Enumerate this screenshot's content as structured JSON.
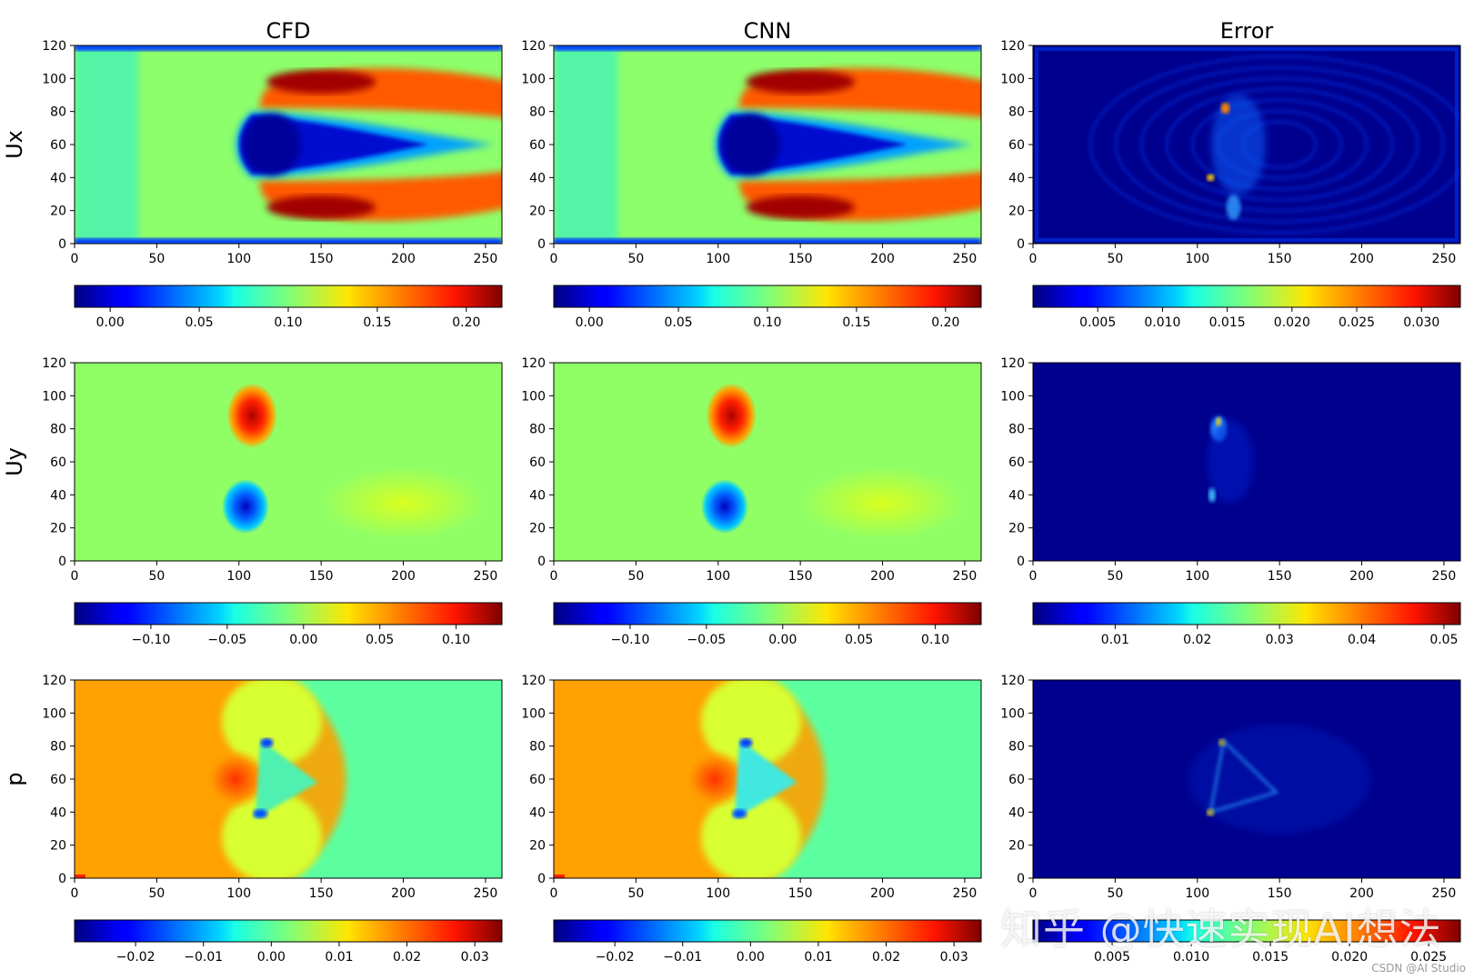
{
  "figure": {
    "column_titles": [
      "CFD",
      "CNN",
      "Error"
    ],
    "row_labels": [
      "Ux",
      "Uy",
      "p"
    ],
    "watermark": "知乎 @快速实现AI想法",
    "credit": "CSDN @AI Studio"
  },
  "chart_data": [
    {
      "type": "heatmap",
      "title": "CFD",
      "ylabel": "Ux",
      "field": "Ux",
      "colormap": "jet",
      "xlim": [
        0,
        260
      ],
      "ylim": [
        0,
        120
      ],
      "x_ticks": [
        0,
        50,
        100,
        150,
        200,
        250
      ],
      "y_ticks": [
        0,
        20,
        40,
        60,
        80,
        100,
        120
      ],
      "colorbar": {
        "orientation": "horizontal",
        "range": [
          -0.02,
          0.22
        ],
        "ticks": [
          0.0,
          0.05,
          0.1,
          0.15,
          0.2
        ],
        "tick_labels": [
          "0.00",
          "0.05",
          "0.10",
          "0.15",
          "0.20"
        ]
      }
    },
    {
      "type": "heatmap",
      "title": "CNN",
      "ylabel": "",
      "field": "Ux",
      "colormap": "jet",
      "xlim": [
        0,
        260
      ],
      "ylim": [
        0,
        120
      ],
      "x_ticks": [
        0,
        50,
        100,
        150,
        200,
        250
      ],
      "y_ticks": [
        0,
        20,
        40,
        60,
        80,
        100,
        120
      ],
      "colorbar": {
        "orientation": "horizontal",
        "range": [
          -0.02,
          0.22
        ],
        "ticks": [
          0.0,
          0.05,
          0.1,
          0.15,
          0.2
        ],
        "tick_labels": [
          "0.00",
          "0.05",
          "0.10",
          "0.15",
          "0.20"
        ]
      }
    },
    {
      "type": "heatmap",
      "title": "Error",
      "ylabel": "",
      "field": "Ux-error",
      "colormap": "jet",
      "xlim": [
        0,
        260
      ],
      "ylim": [
        0,
        120
      ],
      "x_ticks": [
        0,
        50,
        100,
        150,
        200,
        250
      ],
      "y_ticks": [
        0,
        20,
        40,
        60,
        80,
        100,
        120
      ],
      "colorbar": {
        "orientation": "horizontal",
        "range": [
          0.0,
          0.033
        ],
        "ticks": [
          0.005,
          0.01,
          0.015,
          0.02,
          0.025,
          0.03
        ],
        "tick_labels": [
          "0.005",
          "0.010",
          "0.015",
          "0.020",
          "0.025",
          "0.030"
        ]
      }
    },
    {
      "type": "heatmap",
      "title": "",
      "ylabel": "Uy",
      "field": "Uy",
      "colormap": "jet",
      "xlim": [
        0,
        260
      ],
      "ylim": [
        0,
        120
      ],
      "x_ticks": [
        0,
        50,
        100,
        150,
        200,
        250
      ],
      "y_ticks": [
        0,
        20,
        40,
        60,
        80,
        100,
        120
      ],
      "colorbar": {
        "orientation": "horizontal",
        "range": [
          -0.15,
          0.13
        ],
        "ticks": [
          -0.1,
          -0.05,
          0.0,
          0.05,
          0.1
        ],
        "tick_labels": [
          "−0.10",
          "−0.05",
          "0.00",
          "0.05",
          "0.10"
        ]
      }
    },
    {
      "type": "heatmap",
      "title": "",
      "ylabel": "",
      "field": "Uy",
      "colormap": "jet",
      "xlim": [
        0,
        260
      ],
      "ylim": [
        0,
        120
      ],
      "x_ticks": [
        0,
        50,
        100,
        150,
        200,
        250
      ],
      "y_ticks": [
        0,
        20,
        40,
        60,
        80,
        100,
        120
      ],
      "colorbar": {
        "orientation": "horizontal",
        "range": [
          -0.15,
          0.13
        ],
        "ticks": [
          -0.1,
          -0.05,
          0.0,
          0.05,
          0.1
        ],
        "tick_labels": [
          "−0.10",
          "−0.05",
          "0.00",
          "0.05",
          "0.10"
        ]
      }
    },
    {
      "type": "heatmap",
      "title": "",
      "ylabel": "",
      "field": "Uy-error",
      "colormap": "jet",
      "xlim": [
        0,
        260
      ],
      "ylim": [
        0,
        120
      ],
      "x_ticks": [
        0,
        50,
        100,
        150,
        200,
        250
      ],
      "y_ticks": [
        0,
        20,
        40,
        60,
        80,
        100,
        120
      ],
      "colorbar": {
        "orientation": "horizontal",
        "range": [
          0.0,
          0.052
        ],
        "ticks": [
          0.01,
          0.02,
          0.03,
          0.04,
          0.05
        ],
        "tick_labels": [
          "0.01",
          "0.02",
          "0.03",
          "0.04",
          "0.05"
        ]
      }
    },
    {
      "type": "heatmap",
      "title": "",
      "ylabel": "p",
      "field": "p",
      "colormap": "jet",
      "xlim": [
        0,
        260
      ],
      "ylim": [
        0,
        120
      ],
      "x_ticks": [
        0,
        50,
        100,
        150,
        200,
        250
      ],
      "y_ticks": [
        0,
        20,
        40,
        60,
        80,
        100,
        120
      ],
      "colorbar": {
        "orientation": "horizontal",
        "range": [
          -0.029,
          0.034
        ],
        "ticks": [
          -0.02,
          -0.01,
          0.0,
          0.01,
          0.02,
          0.03
        ],
        "tick_labels": [
          "−0.02",
          "−0.01",
          "0.00",
          "0.01",
          "0.02",
          "0.03"
        ]
      }
    },
    {
      "type": "heatmap",
      "title": "",
      "ylabel": "",
      "field": "p",
      "colormap": "jet",
      "xlim": [
        0,
        260
      ],
      "ylim": [
        0,
        120
      ],
      "x_ticks": [
        0,
        50,
        100,
        150,
        200,
        250
      ],
      "y_ticks": [
        0,
        20,
        40,
        60,
        80,
        100,
        120
      ],
      "colorbar": {
        "orientation": "horizontal",
        "range": [
          -0.029,
          0.034
        ],
        "ticks": [
          -0.02,
          -0.01,
          0.0,
          0.01,
          0.02,
          0.03
        ],
        "tick_labels": [
          "−0.02",
          "−0.01",
          "0.00",
          "0.01",
          "0.02",
          "0.03"
        ]
      }
    },
    {
      "type": "heatmap",
      "title": "",
      "ylabel": "",
      "field": "p-error",
      "colormap": "jet",
      "xlim": [
        0,
        260
      ],
      "ylim": [
        0,
        120
      ],
      "x_ticks": [
        0,
        50,
        100,
        150,
        200,
        250
      ],
      "y_ticks": [
        0,
        20,
        40,
        60,
        80,
        100,
        120
      ],
      "colorbar": {
        "orientation": "horizontal",
        "range": [
          0.0,
          0.027
        ],
        "ticks": [
          0.005,
          0.01,
          0.015,
          0.02,
          0.025
        ],
        "tick_labels": [
          "0.005",
          "0.010",
          "0.015",
          "0.020",
          "0.025"
        ]
      }
    }
  ]
}
